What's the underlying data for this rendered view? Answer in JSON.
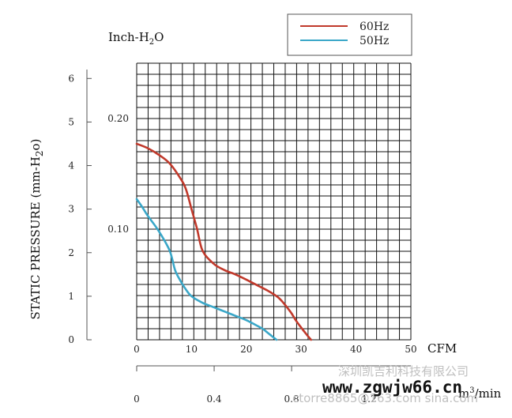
{
  "chart_data": {
    "type": "line",
    "title": "",
    "ylabel": "STATIC PRESSURE (mm-H",
    "ylabel_sub": "2",
    "ylabel_end": "o)",
    "y2label": "Inch-H",
    "y2label_sub": "2",
    "y2label_end": "O",
    "xlabel": "CFM",
    "x2label": "m³/min",
    "x2label_base": "m",
    "x2label_sup": "3",
    "x2label_end": "/min",
    "xlim": [
      0,
      50
    ],
    "ylim": [
      0,
      6
    ],
    "x_ticks": [
      "0",
      "10",
      "20",
      "30",
      "40",
      "50"
    ],
    "y_ticks": [
      "0",
      "1",
      "2",
      "3",
      "4",
      "5",
      "6"
    ],
    "y2_ticks": [
      {
        "label": "0.10",
        "value": 2.54
      },
      {
        "label": "0.20",
        "value": 5.08
      }
    ],
    "x2_ticks": [
      {
        "label": "0",
        "value": 0
      },
      {
        "label": "0.4",
        "value": 0.4
      },
      {
        "label": "0.8",
        "value": 0.8
      },
      {
        "label": "1.2",
        "value": 1.2
      }
    ],
    "x2_max_cfm_per_unit": 35.3147,
    "grid": true,
    "legend_position": "top-right",
    "series": [
      {
        "name": "60Hz",
        "color": "#c0392b",
        "x": [
          0,
          2,
          4,
          6,
          8,
          9,
          10,
          11,
          12,
          14,
          16,
          18,
          20,
          22,
          24,
          26,
          28,
          29,
          30,
          31,
          31.8
        ],
        "y": [
          4.5,
          4.4,
          4.25,
          4.05,
          3.7,
          3.45,
          3.0,
          2.55,
          2.05,
          1.75,
          1.6,
          1.5,
          1.38,
          1.25,
          1.12,
          0.95,
          0.65,
          0.45,
          0.28,
          0.12,
          0
        ]
      },
      {
        "name": "50Hz",
        "color": "#3aa7c8",
        "x": [
          0,
          1,
          2,
          4,
          6,
          7,
          8,
          9,
          10,
          12,
          14,
          16,
          18,
          20,
          22,
          23,
          24,
          25,
          25.5
        ],
        "y": [
          3.23,
          3.05,
          2.85,
          2.5,
          2.05,
          1.6,
          1.35,
          1.15,
          1.0,
          0.85,
          0.75,
          0.65,
          0.55,
          0.45,
          0.32,
          0.25,
          0.15,
          0.05,
          0
        ]
      }
    ]
  },
  "watermarks": {
    "company": "深圳凯吉利科技有限公司",
    "email": "ctorre8865@163.com  sina.com",
    "site": "www.zgwjw66.cn"
  }
}
